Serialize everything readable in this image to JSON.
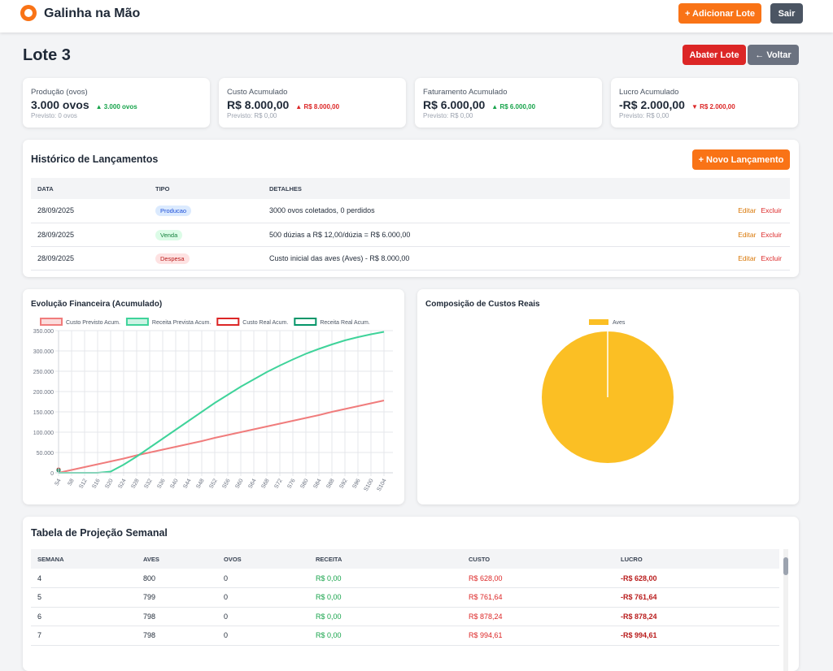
{
  "header": {
    "brand": "Galinha na Mão",
    "add_button": "+ Adicionar Lote",
    "logout_button": "Sair"
  },
  "page": {
    "title": "Lote 3",
    "cull_button": "Abater Lote",
    "back_button": "← Voltar"
  },
  "kpis": [
    {
      "label": "Produção (ovos)",
      "value": "3.000 ovos",
      "delta": "▲ 3.000 ovos",
      "forecast": "Previsto: 0 ovos"
    },
    {
      "label": "Custo Acumulado",
      "value": "R$ 8.000,00",
      "delta": "▲ R$ 8.000,00",
      "forecast": "Previsto: R$ 0,00"
    },
    {
      "label": "Faturamento Acumulado",
      "value": "R$ 6.000,00",
      "delta": "▲ R$ 6.000,00",
      "forecast": "Previsto: R$ 0,00"
    },
    {
      "label": "Lucro Acumulado",
      "value": "-R$ 2.000,00",
      "delta": "▼ R$ 2.000,00",
      "forecast": "Previsto: R$ 0,00"
    }
  ],
  "history": {
    "title": "Histórico de Lançamentos",
    "new_button": "+ Novo Lançamento",
    "columns": [
      "DATA",
      "TIPO",
      "DETALHES"
    ],
    "edit": "Editar",
    "delete": "Excluir",
    "rows": [
      [
        "28/09/2025",
        "Producao",
        "3000 ovos coletados, 0 perdidos"
      ],
      [
        "28/09/2025",
        "Venda",
        "500 dúzias a R$ 12,00/dúzia = R$ 6.000,00"
      ],
      [
        "28/09/2025",
        "Despesa",
        "Custo inicial das aves (Aves) - R$ 8.000,00"
      ]
    ]
  },
  "chart_data": [
    {
      "type": "line",
      "title": "Evolução Financeira (Acumulado)",
      "categories": [
        "S4",
        "S8",
        "S12",
        "S16",
        "S20",
        "S24",
        "S28",
        "S32",
        "S36",
        "S40",
        "S44",
        "S48",
        "S52",
        "S56",
        "S60",
        "S64",
        "S68",
        "S72",
        "S76",
        "S80",
        "S84",
        "S88",
        "S92",
        "S96",
        "S100",
        "S104"
      ],
      "series": [
        {
          "name": "Custo Previsto Acum.",
          "color": "#f07c7c",
          "values": [
            0,
            7000,
            14000,
            21000,
            28000,
            35000,
            43000,
            50000,
            57000,
            64000,
            71000,
            78000,
            86000,
            93000,
            100000,
            107000,
            114000,
            121000,
            128000,
            135000,
            142000,
            150000,
            157000,
            164000,
            171000,
            178000
          ]
        },
        {
          "name": "Receita Prevista Acum.",
          "color": "#3fd39a",
          "values": [
            0,
            0,
            0,
            0,
            3000,
            20000,
            40000,
            62000,
            84000,
            106000,
            128000,
            150000,
            172000,
            192000,
            212000,
            230000,
            248000,
            264000,
            279000,
            293000,
            305000,
            316000,
            326000,
            334000,
            341000,
            347000
          ]
        },
        {
          "name": "Custo Real Acum.",
          "color": "#dc2626",
          "values": [
            8000,
            null,
            null,
            null,
            null,
            null,
            null,
            null,
            null,
            null,
            null,
            null,
            null,
            null,
            null,
            null,
            null,
            null,
            null,
            null,
            null,
            null,
            null,
            null,
            null,
            null
          ]
        },
        {
          "name": "Receita Real Acum.",
          "color": "#059669",
          "values": [
            6000,
            null,
            null,
            null,
            null,
            null,
            null,
            null,
            null,
            null,
            null,
            null,
            null,
            null,
            null,
            null,
            null,
            null,
            null,
            null,
            null,
            null,
            null,
            null,
            null,
            null
          ]
        }
      ],
      "ylim": [
        0,
        350000
      ],
      "yticks": [
        0,
        {
          "value": 50000,
          "label": "50.000"
        },
        {
          "value": 100000,
          "label": "100.000"
        },
        {
          "value": 150000,
          "label": "150.000"
        },
        {
          "value": 200000,
          "label": "200.000"
        },
        {
          "value": 250000,
          "label": "250.000"
        },
        {
          "value": 300000,
          "label": "300.000"
        },
        {
          "value": 350000,
          "label": "350.000"
        }
      ],
      "grid": true,
      "legend": "top"
    },
    {
      "type": "pie",
      "title": "Composição de Custos Reais",
      "categories": [
        "Aves"
      ],
      "values": [
        100
      ],
      "colors": [
        "#fbbf24"
      ],
      "legend": "top"
    }
  ],
  "projection": {
    "title": "Tabela de Projeção Semanal",
    "columns": [
      "SEMANA",
      "AVES",
      "OVOS",
      "RECEITA",
      "CUSTO",
      "LUCRO"
    ],
    "rows": [
      [
        "4",
        "800",
        "0",
        "R$ 0,00",
        "R$ 628,00",
        "-R$ 628,00"
      ],
      [
        "5",
        "799",
        "0",
        "R$ 0,00",
        "R$ 761,64",
        "-R$ 761,64"
      ],
      [
        "6",
        "798",
        "0",
        "R$ 0,00",
        "R$ 878,24",
        "-R$ 878,24"
      ],
      [
        "7",
        "798",
        "0",
        "R$ 0,00",
        "R$ 994,61",
        "-R$ 994,61"
      ]
    ]
  }
}
